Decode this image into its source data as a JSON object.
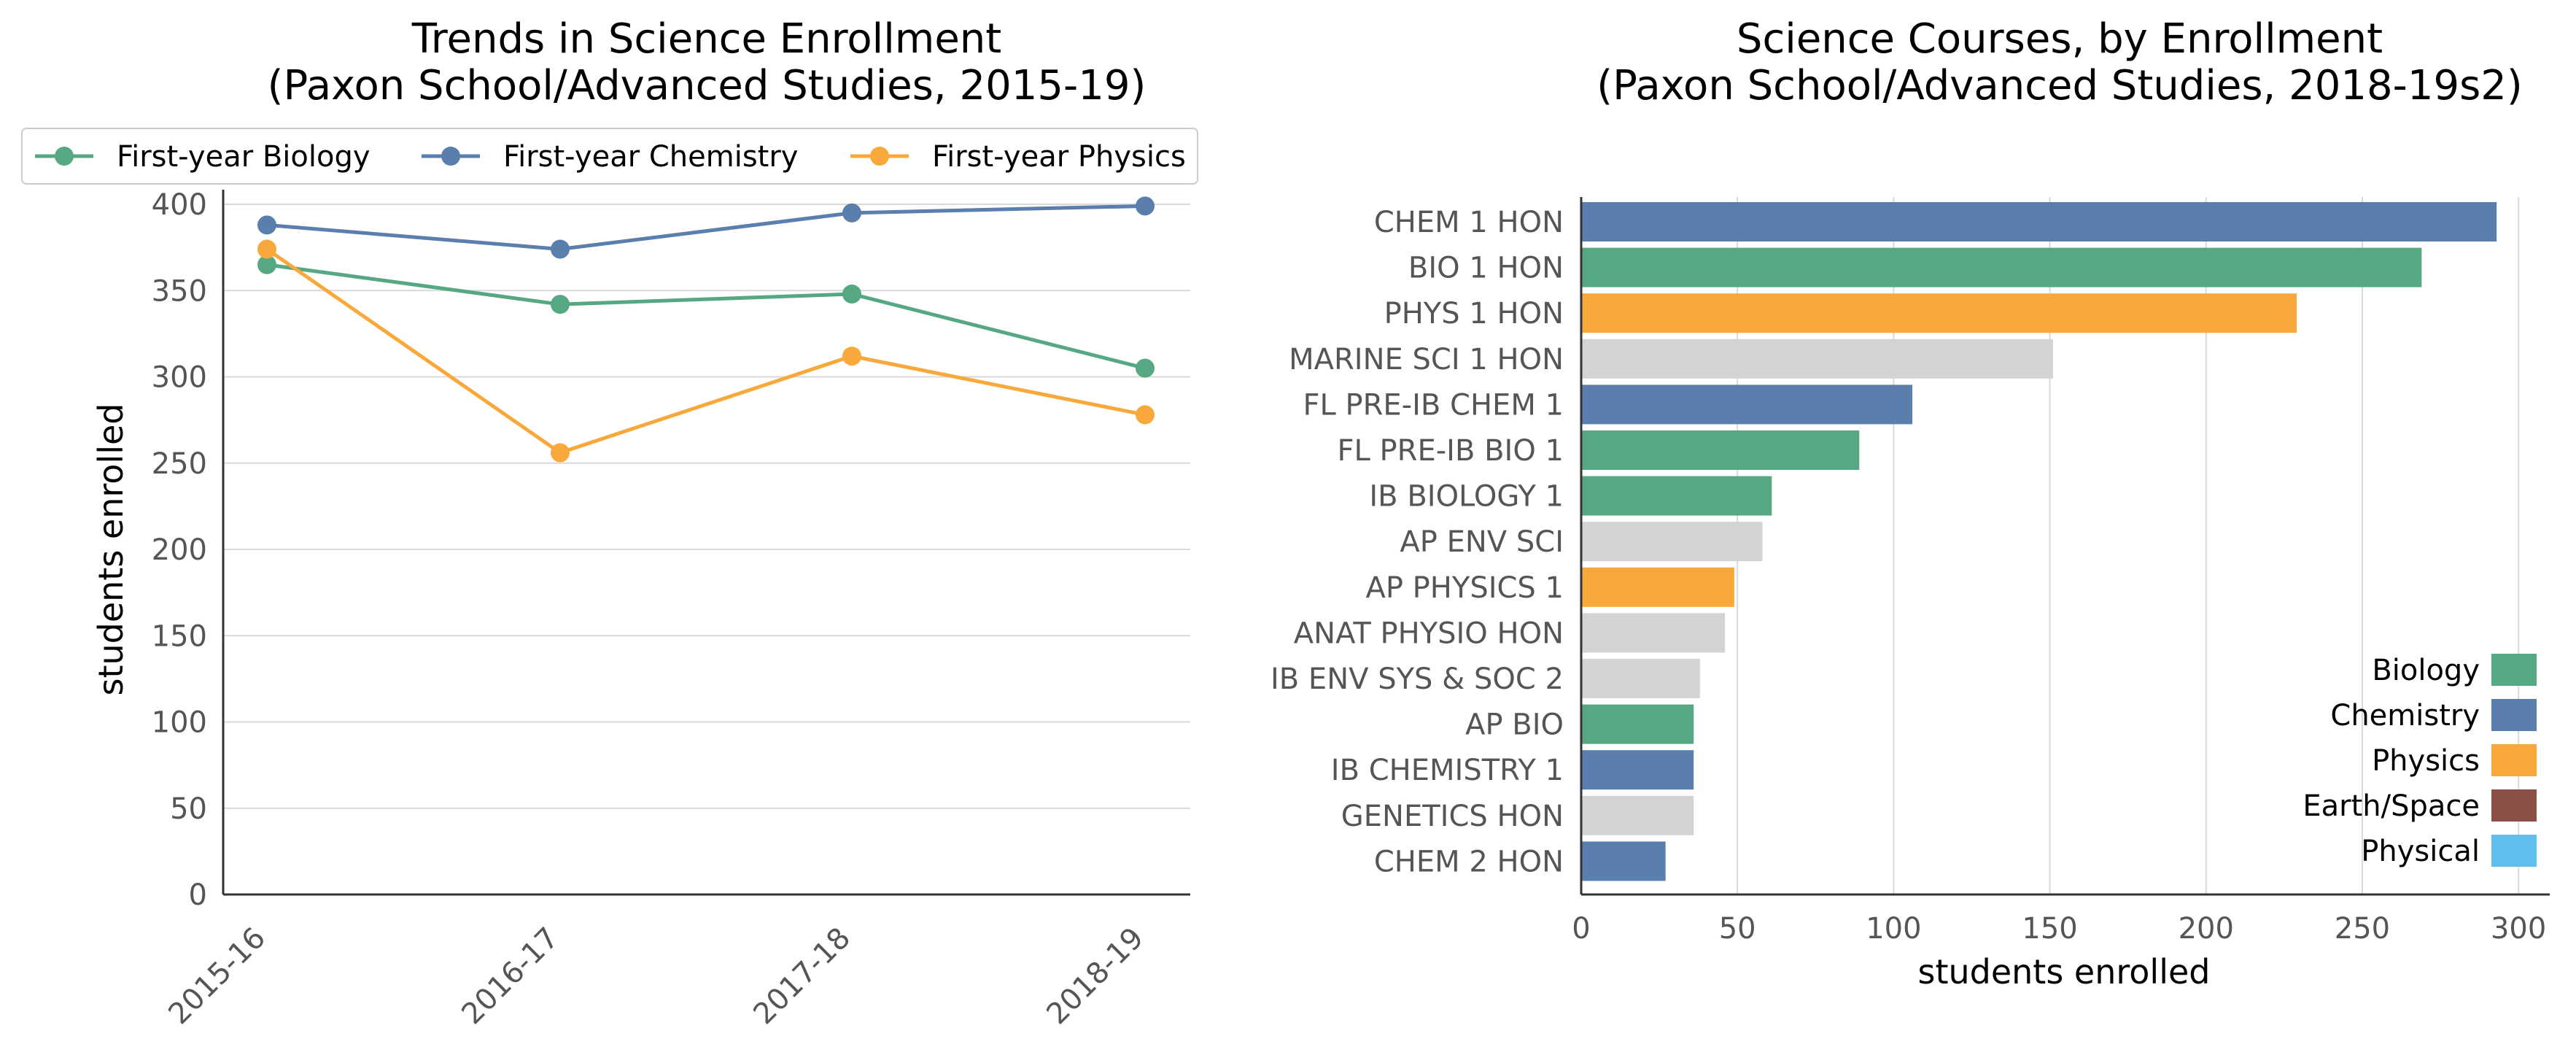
{
  "chart_data": [
    {
      "type": "line",
      "title": [
        "Trends in Science Enrollment",
        "(Paxon School/Advanced Studies, 2015-19)"
      ],
      "ylabel": "students enrolled",
      "x": [
        "2015-16",
        "2016-17",
        "2017-18",
        "2018-19"
      ],
      "ylim": [
        0,
        400
      ],
      "yticks": [
        0,
        50,
        100,
        150,
        200,
        250,
        300,
        350,
        400
      ],
      "grid": "horizontal",
      "legend_position": "top",
      "series": [
        {
          "name": "First-year Biology",
          "color": "#55a882",
          "values": [
            365,
            342,
            348,
            305
          ]
        },
        {
          "name": "First-year Chemistry",
          "color": "#5a7fac",
          "values": [
            388,
            374,
            395,
            399
          ]
        },
        {
          "name": "First-year Physics",
          "color": "#f9a93c",
          "values": [
            374,
            256,
            312,
            278
          ]
        }
      ]
    },
    {
      "type": "bar",
      "orientation": "horizontal",
      "title": [
        "Science Courses, by Enrollment",
        "(Paxon School/Advanced Studies, 2018-19s2)"
      ],
      "xlabel": "students enrolled",
      "xlim": [
        0,
        310
      ],
      "xticks": [
        0,
        50,
        100,
        150,
        200,
        250,
        300
      ],
      "grid": "vertical",
      "legend_position": "lower-right",
      "categories": [
        "CHEM 1 HON",
        "BIO 1 HON",
        "PHYS 1 HON",
        "MARINE SCI 1 HON",
        "FL PRE-IB CHEM 1",
        "FL PRE-IB BIO 1",
        "IB BIOLOGY 1",
        "AP ENV SCI",
        "AP PHYSICS 1",
        "ANAT PHYSIO HON",
        "IB ENV SYS & SOC 2",
        "AP BIO",
        "IB CHEMISTRY 1",
        "GENETICS HON",
        "CHEM 2 HON"
      ],
      "values": [
        293,
        269,
        229,
        151,
        106,
        89,
        61,
        58,
        49,
        46,
        38,
        36,
        36,
        36,
        27
      ],
      "bar_colors": [
        "#5a7fac",
        "#55a882",
        "#f9a93c",
        "#d3d3d3",
        "#5a7fac",
        "#55a882",
        "#55a882",
        "#d3d3d3",
        "#f9a93c",
        "#d3d3d3",
        "#d3d3d3",
        "#55a882",
        "#5a7fac",
        "#d3d3d3",
        "#5a7fac"
      ],
      "legend": [
        {
          "name": "Biology",
          "color": "#55a882"
        },
        {
          "name": "Chemistry",
          "color": "#5a7fac"
        },
        {
          "name": "Physics",
          "color": "#f9a93c"
        },
        {
          "name": "Earth/Space",
          "color": "#8b5147"
        },
        {
          "name": "Physical",
          "color": "#5ebfef"
        }
      ]
    }
  ]
}
